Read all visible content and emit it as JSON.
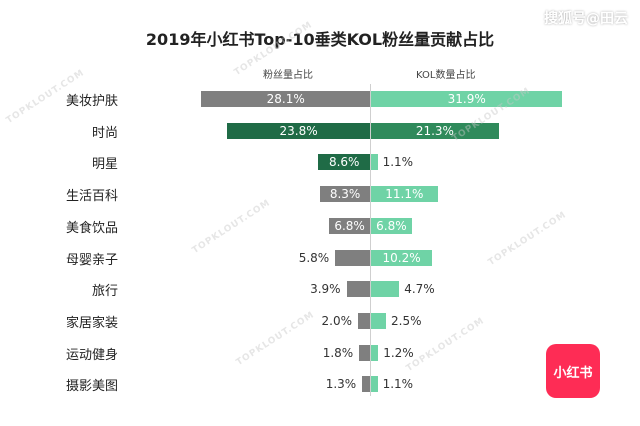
{
  "watermark_text": "搜狐号@田云",
  "logo_text": "小红书",
  "watermark_stamp": "TOPKLOUT.COM",
  "colors": {
    "left_default": "#7f7f7f",
    "left_highlight": "#1f6b46",
    "right_default": "#6fd3a6",
    "right_highlight": "#2f8a5b",
    "axis": "#cfcfcf"
  },
  "chart_data": {
    "type": "bar",
    "title": "2019年小红书Top-10垂类KOL粉丝量贡献占比",
    "unit": "%",
    "categories": [
      "美妆护肤",
      "时尚",
      "明星",
      "生活百科",
      "美食饮品",
      "母婴亲子",
      "旅行",
      "家居家装",
      "运动健身",
      "摄影美图"
    ],
    "series": [
      {
        "name": "粉丝量占比",
        "side": "left",
        "values": [
          28.1,
          23.8,
          8.6,
          8.3,
          6.8,
          5.8,
          3.9,
          2.0,
          1.8,
          1.3
        ],
        "labels": [
          "28.1%",
          "23.8%",
          "8.6%",
          "8.3%",
          "6.8%",
          "5.8%",
          "3.9%",
          "2.0%",
          "1.8%",
          "1.3%"
        ]
      },
      {
        "name": "KOL数量占比",
        "side": "right",
        "values": [
          31.9,
          21.3,
          1.1,
          11.1,
          6.8,
          10.2,
          4.7,
          2.5,
          1.2,
          1.1
        ],
        "labels": [
          "31.9%",
          "21.3%",
          "1.1%",
          "11.1%",
          "6.8%",
          "10.2%",
          "4.7%",
          "2.5%",
          "1.2%",
          "1.1%"
        ]
      }
    ],
    "highlight_index": 1,
    "highlight_left_index": 2
  }
}
